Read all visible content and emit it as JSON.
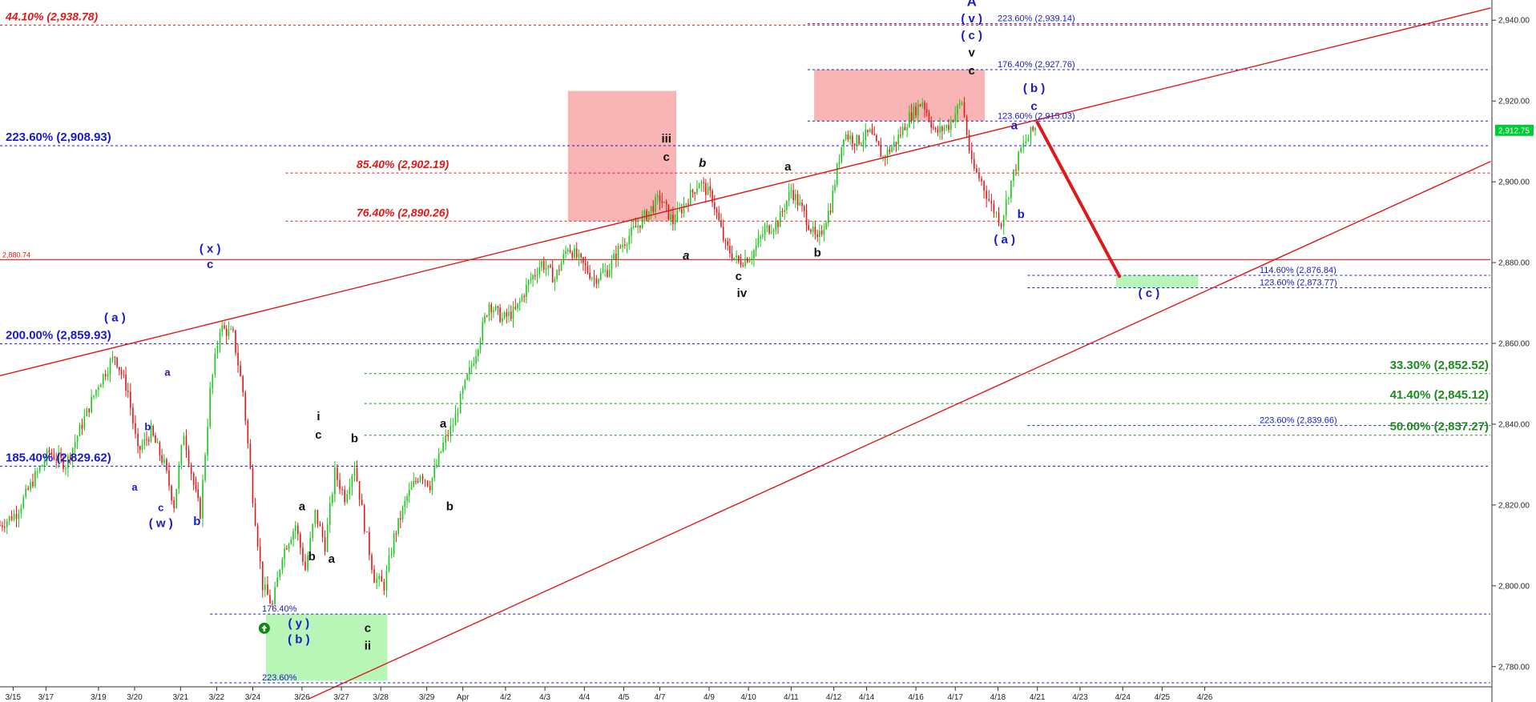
{
  "chart_data": {
    "type": "candlestick",
    "title": "",
    "y_range": [
      2775,
      2945
    ],
    "x_range": [
      0,
      40
    ],
    "price_axis": {
      "ticks": [
        {
          "value": 2940,
          "label": "2,940.00"
        },
        {
          "value": 2920,
          "label": "2,920.00"
        },
        {
          "value": 2900,
          "label": "2,900.00"
        },
        {
          "value": 2880,
          "label": "2,880.00"
        },
        {
          "value": 2860,
          "label": "2,860.00"
        },
        {
          "value": 2840,
          "label": "2,840.00"
        },
        {
          "value": 2820,
          "label": "2,820.00"
        },
        {
          "value": 2800,
          "label": "2,800.00"
        },
        {
          "value": 2780,
          "label": "2,780.00"
        }
      ],
      "last_price": {
        "value": 2912.75,
        "label": "2,912.75",
        "color": "#00cc33"
      }
    },
    "date_axis": [
      {
        "label": "3/15",
        "x": 0.4
      },
      {
        "label": "3/17",
        "x": 1.4
      },
      {
        "label": "3/19",
        "x": 3.0
      },
      {
        "label": "3/20",
        "x": 4.1
      },
      {
        "label": "3/21",
        "x": 5.5
      },
      {
        "label": "3/22",
        "x": 6.6
      },
      {
        "label": "3/24",
        "x": 7.7
      },
      {
        "label": "3/26",
        "x": 9.2
      },
      {
        "label": "3/27",
        "x": 10.4
      },
      {
        "label": "3/28",
        "x": 11.6
      },
      {
        "label": "3/29",
        "x": 13.0
      },
      {
        "label": "Apr",
        "x": 14.1
      },
      {
        "label": "4/2",
        "x": 15.4
      },
      {
        "label": "4/3",
        "x": 16.6
      },
      {
        "label": "4/4",
        "x": 17.8
      },
      {
        "label": "4/5",
        "x": 19.0
      },
      {
        "label": "4/7",
        "x": 20.1
      },
      {
        "label": "4/9",
        "x": 21.6
      },
      {
        "label": "4/10",
        "x": 22.8
      },
      {
        "label": "4/11",
        "x": 24.1
      },
      {
        "label": "4/12",
        "x": 25.4
      },
      {
        "label": "4/14",
        "x": 26.4
      },
      {
        "label": "4/16",
        "x": 27.9
      },
      {
        "label": "4/17",
        "x": 29.1
      },
      {
        "label": "4/18",
        "x": 30.4
      },
      {
        "label": "4/21",
        "x": 31.6
      },
      {
        "label": "4/23",
        "x": 32.9
      },
      {
        "label": "4/24",
        "x": 34.2
      },
      {
        "label": "4/25",
        "x": 35.4
      },
      {
        "label": "4/26",
        "x": 36.7
      }
    ],
    "price_path": [
      [
        0.0,
        2815
      ],
      [
        0.5,
        2818
      ],
      [
        1.0,
        2826
      ],
      [
        1.5,
        2833
      ],
      [
        2.0,
        2830
      ],
      [
        2.5,
        2840
      ],
      [
        3.0,
        2850
      ],
      [
        3.5,
        2857
      ],
      [
        3.9,
        2848
      ],
      [
        4.2,
        2833
      ],
      [
        4.6,
        2838
      ],
      [
        5.0,
        2830
      ],
      [
        5.3,
        2820
      ],
      [
        5.6,
        2838
      ],
      [
        5.9,
        2825
      ],
      [
        6.1,
        2818
      ],
      [
        6.4,
        2848
      ],
      [
        6.7,
        2864
      ],
      [
        7.1,
        2862
      ],
      [
        7.4,
        2848
      ],
      [
        7.7,
        2822
      ],
      [
        8.0,
        2800
      ],
      [
        8.3,
        2795
      ],
      [
        8.6,
        2808
      ],
      [
        9.0,
        2815
      ],
      [
        9.3,
        2804
      ],
      [
        9.6,
        2818
      ],
      [
        9.9,
        2810
      ],
      [
        10.2,
        2828
      ],
      [
        10.5,
        2822
      ],
      [
        10.8,
        2830
      ],
      [
        11.1,
        2815
      ],
      [
        11.4,
        2802
      ],
      [
        11.7,
        2800
      ],
      [
        12.0,
        2812
      ],
      [
        12.4,
        2822
      ],
      [
        12.8,
        2828
      ],
      [
        13.1,
        2825
      ],
      [
        13.5,
        2835
      ],
      [
        13.8,
        2840
      ],
      [
        14.1,
        2848
      ],
      [
        14.5,
        2858
      ],
      [
        14.9,
        2870
      ],
      [
        15.3,
        2866
      ],
      [
        15.7,
        2868
      ],
      [
        16.1,
        2875
      ],
      [
        16.5,
        2880
      ],
      [
        16.9,
        2876
      ],
      [
        17.3,
        2884
      ],
      [
        17.7,
        2880
      ],
      [
        18.1,
        2876
      ],
      [
        18.5,
        2878
      ],
      [
        18.9,
        2884
      ],
      [
        19.3,
        2888
      ],
      [
        19.7,
        2892
      ],
      [
        20.1,
        2896
      ],
      [
        20.5,
        2890
      ],
      [
        20.9,
        2895
      ],
      [
        21.3,
        2900
      ],
      [
        21.7,
        2896
      ],
      [
        22.1,
        2884
      ],
      [
        22.5,
        2880
      ],
      [
        22.9,
        2882
      ],
      [
        23.3,
        2888
      ],
      [
        23.7,
        2890
      ],
      [
        24.1,
        2898
      ],
      [
        24.5,
        2892
      ],
      [
        24.9,
        2885
      ],
      [
        25.3,
        2894
      ],
      [
        25.7,
        2912
      ],
      [
        26.1,
        2910
      ],
      [
        26.5,
        2912
      ],
      [
        26.9,
        2906
      ],
      [
        27.3,
        2910
      ],
      [
        27.7,
        2916
      ],
      [
        28.1,
        2920
      ],
      [
        28.5,
        2912
      ],
      [
        28.9,
        2914
      ],
      [
        29.3,
        2920
      ],
      [
        29.6,
        2904
      ],
      [
        29.9,
        2900
      ],
      [
        30.2,
        2894
      ],
      [
        30.5,
        2890
      ],
      [
        30.8,
        2900
      ],
      [
        31.1,
        2908
      ],
      [
        31.4,
        2912
      ],
      [
        31.6,
        2914
      ]
    ],
    "levels": [
      {
        "label": "44.10% (2,938.78)",
        "value": 2938.78,
        "color": "#e01818",
        "style": "dashed",
        "x_from": 0,
        "x_to": 37.1,
        "italic": true,
        "size": 14
      },
      {
        "label": "223.60% (2,939.14)",
        "value": 2939.14,
        "color": "#1a1acc",
        "style": "dashed",
        "x_from": 24.6,
        "x_to": 37.1,
        "italic": false,
        "size": 11
      },
      {
        "label": "176.40% (2,927.76)",
        "value": 2927.76,
        "color": "#1a1acc",
        "style": "dashed",
        "x_from": 24.6,
        "x_to": 37.1,
        "italic": false,
        "size": 11
      },
      {
        "label": "123.60% (2,915.03)",
        "value": 2915.03,
        "color": "#1a1acc",
        "style": "dashed",
        "x_from": 24.6,
        "x_to": 37.1,
        "italic": false,
        "size": 11
      },
      {
        "label": "223.60% (2,908.93)",
        "value": 2908.93,
        "color": "#1a1acc",
        "style": "dashed",
        "x_from": 0,
        "x_to": 37.1,
        "italic": false,
        "size": 15
      },
      {
        "label": "85.40% (2,902.19)",
        "value": 2902.19,
        "color": "#e01818",
        "style": "dashed",
        "x_from": 8.7,
        "x_to": 37.1,
        "italic": true,
        "size": 14
      },
      {
        "label": "76.40% (2,890.26)",
        "value": 2890.26,
        "color": "#e01818",
        "style": "dashed",
        "x_from": 8.7,
        "x_to": 37.1,
        "italic": true,
        "size": 14
      },
      {
        "label": "2,880.74",
        "value": 2880.74,
        "color": "#e01818",
        "style": "solid",
        "x_from": 0,
        "x_to": 37.1,
        "italic": false,
        "size": 9
      },
      {
        "label": "114.60% (2,876.84)",
        "value": 2876.84,
        "color": "#1a1acc",
        "style": "dashed",
        "x_from": 31.3,
        "x_to": 37.1,
        "italic": false,
        "size": 11
      },
      {
        "label": "123.60% (2,873.77)",
        "value": 2873.77,
        "color": "#1a1acc",
        "style": "dashed",
        "x_from": 31.3,
        "x_to": 37.1,
        "italic": false,
        "size": 11
      },
      {
        "label": "200.00% (2,859.93)",
        "value": 2859.93,
        "color": "#1a1acc",
        "style": "dashed",
        "x_from": 0,
        "x_to": 37.1,
        "italic": false,
        "size": 15
      },
      {
        "label": "33.30% (2,852.52)",
        "value": 2852.52,
        "color": "#1f8a1f",
        "style": "dashed",
        "x_from": 11.1,
        "x_to": 37.1,
        "italic": false,
        "size": 15
      },
      {
        "label": "41.40% (2,845.12)",
        "value": 2845.12,
        "color": "#1f8a1f",
        "style": "dashed",
        "x_from": 11.1,
        "x_to": 37.1,
        "italic": false,
        "size": 15
      },
      {
        "label": "223.60% (2,839.66)",
        "value": 2839.66,
        "color": "#1a1acc",
        "style": "dashed",
        "x_from": 31.3,
        "x_to": 37.1,
        "italic": false,
        "size": 11
      },
      {
        "label": "50.00% (2,837.27)",
        "value": 2837.27,
        "color": "#1f8a1f",
        "style": "dashed",
        "x_from": 11.1,
        "x_to": 37.1,
        "italic": false,
        "size": 15
      },
      {
        "label": "185.40% (2,829.62)",
        "value": 2829.62,
        "color": "#1a1acc",
        "style": "dashed",
        "x_from": 0,
        "x_to": 37.1,
        "italic": false,
        "size": 15
      },
      {
        "label": "176.40%",
        "value": 2793.0,
        "color": "#1a1acc",
        "style": "dashed",
        "x_from": 6.4,
        "x_to": 37.1,
        "italic": false,
        "size": 11
      },
      {
        "label": "223.60%",
        "value": 2776.0,
        "color": "#1a1acc",
        "style": "dashed",
        "x_from": 6.4,
        "x_to": 37.1,
        "italic": false,
        "size": 11
      }
    ],
    "zones": [
      {
        "color": "#f9b1b1",
        "x_from": 17.3,
        "x_to": 20.6,
        "y_from": 2890.26,
        "y_to": 2922.5
      },
      {
        "color": "#f9b1b1",
        "x_from": 24.8,
        "x_to": 30.0,
        "y_from": 2915.03,
        "y_to": 2927.76
      },
      {
        "color": "#b4f5b4",
        "x_from": 8.1,
        "x_to": 11.8,
        "y_from": 2776.5,
        "y_to": 2793.0
      },
      {
        "color": "#b4f5b4",
        "x_from": 34.0,
        "x_to": 36.5,
        "y_from": 2873.77,
        "y_to": 2876.84
      }
    ],
    "trendlines": [
      {
        "color": "#e01818",
        "width": 1.4,
        "from": [
          0,
          2852
        ],
        "to": [
          37.1,
          2943
        ]
      },
      {
        "color": "#e01818",
        "width": 1.4,
        "from": [
          9.4,
          2772
        ],
        "to": [
          37.1,
          2905
        ]
      },
      {
        "color": "#e01818",
        "width": 4,
        "from": [
          31.6,
          2914.7
        ],
        "to": [
          34.1,
          2876.6
        ]
      }
    ],
    "wave_labels": [
      {
        "text": "A",
        "x": 29.6,
        "y": 2943.5,
        "color": "#1a1acc",
        "size": 17,
        "italic": false
      },
      {
        "text": "( v )",
        "x": 29.6,
        "y": 2939.5,
        "color": "#1a1acc",
        "size": 15,
        "italic": false
      },
      {
        "text": "( c )",
        "x": 29.6,
        "y": 2935.3,
        "color": "#1a1acc",
        "size": 15,
        "italic": false
      },
      {
        "text": "v",
        "x": 29.6,
        "y": 2931.0,
        "color": "#111111",
        "size": 15,
        "italic": false
      },
      {
        "text": "c",
        "x": 29.6,
        "y": 2926.6,
        "color": "#111111",
        "size": 15,
        "italic": false
      },
      {
        "text": "( b )",
        "x": 31.5,
        "y": 2922.2,
        "color": "#1a1acc",
        "size": 15,
        "italic": false
      },
      {
        "text": "c",
        "x": 31.5,
        "y": 2917.8,
        "color": "#1a1acc",
        "size": 15,
        "italic": false
      },
      {
        "text": "a",
        "x": 30.9,
        "y": 2913.0,
        "color": "#1a1acc",
        "size": 15,
        "italic": false
      },
      {
        "text": "b",
        "x": 31.1,
        "y": 2891.0,
        "color": "#1a1acc",
        "size": 15,
        "italic": false
      },
      {
        "text": "( a )",
        "x": 30.6,
        "y": 2884.8,
        "color": "#1a1acc",
        "size": 15,
        "italic": false
      },
      {
        "text": "( c )",
        "x": 35.0,
        "y": 2871.5,
        "color": "#1a1acc",
        "size": 15,
        "italic": false
      },
      {
        "text": "iii",
        "x": 20.3,
        "y": 2909.7,
        "color": "#111111",
        "size": 15,
        "italic": false
      },
      {
        "text": "c",
        "x": 20.3,
        "y": 2905.2,
        "color": "#111111",
        "size": 15,
        "italic": false
      },
      {
        "text": "b",
        "x": 21.4,
        "y": 2903.7,
        "color": "#111111",
        "size": 15,
        "italic": true
      },
      {
        "text": "a",
        "x": 24.0,
        "y": 2902.8,
        "color": "#111111",
        "size": 15,
        "italic": false
      },
      {
        "text": "a",
        "x": 20.9,
        "y": 2880.8,
        "color": "#111111",
        "size": 15,
        "italic": true
      },
      {
        "text": "b",
        "x": 24.9,
        "y": 2881.5,
        "color": "#111111",
        "size": 15,
        "italic": false
      },
      {
        "text": "c",
        "x": 22.5,
        "y": 2875.7,
        "color": "#111111",
        "size": 15,
        "italic": false
      },
      {
        "text": "iv",
        "x": 22.6,
        "y": 2871.5,
        "color": "#111111",
        "size": 15,
        "italic": false
      },
      {
        "text": "( x )",
        "x": 6.4,
        "y": 2882.5,
        "color": "#1a1acc",
        "size": 15,
        "italic": false
      },
      {
        "text": "c",
        "x": 6.4,
        "y": 2878.6,
        "color": "#1a1acc",
        "size": 15,
        "italic": false
      },
      {
        "text": "( a )",
        "x": 3.5,
        "y": 2865.4,
        "color": "#1a1acc",
        "size": 15,
        "italic": false
      },
      {
        "text": "a",
        "x": 5.1,
        "y": 2852.0,
        "color": "#1a1acc",
        "size": 13,
        "italic": false
      },
      {
        "text": "b",
        "x": 4.5,
        "y": 2838.5,
        "color": "#1a1acc",
        "size": 13,
        "italic": false
      },
      {
        "text": "a",
        "x": 4.1,
        "y": 2823.5,
        "color": "#1a1acc",
        "size": 13,
        "italic": false
      },
      {
        "text": "c",
        "x": 4.9,
        "y": 2818.5,
        "color": "#1a1acc",
        "size": 13,
        "italic": false
      },
      {
        "text": "( w )",
        "x": 4.9,
        "y": 2814.5,
        "color": "#1a1acc",
        "size": 15,
        "italic": false
      },
      {
        "text": "b",
        "x": 6.0,
        "y": 2815.0,
        "color": "#1a1acc",
        "size": 15,
        "italic": false
      },
      {
        "text": "( y )",
        "x": 9.1,
        "y": 2789.8,
        "color": "#1a1acc",
        "size": 15,
        "italic": false
      },
      {
        "text": "( b )",
        "x": 9.1,
        "y": 2785.8,
        "color": "#1a1acc",
        "size": 15,
        "italic": false
      },
      {
        "text": "i",
        "x": 9.7,
        "y": 2841.0,
        "color": "#111111",
        "size": 15,
        "italic": false
      },
      {
        "text": "c",
        "x": 9.7,
        "y": 2836.4,
        "color": "#111111",
        "size": 15,
        "italic": false
      },
      {
        "text": "a",
        "x": 9.2,
        "y": 2818.7,
        "color": "#111111",
        "size": 15,
        "italic": false
      },
      {
        "text": "b",
        "x": 9.5,
        "y": 2806.3,
        "color": "#111111",
        "size": 15,
        "italic": false
      },
      {
        "text": "a",
        "x": 10.1,
        "y": 2805.7,
        "color": "#111111",
        "size": 15,
        "italic": false
      },
      {
        "text": "b",
        "x": 10.8,
        "y": 2835.5,
        "color": "#111111",
        "size": 15,
        "italic": false
      },
      {
        "text": "c",
        "x": 11.2,
        "y": 2788.6,
        "color": "#111111",
        "size": 15,
        "italic": false
      },
      {
        "text": "ii",
        "x": 11.2,
        "y": 2784.2,
        "color": "#111111",
        "size": 15,
        "italic": false
      },
      {
        "text": "a",
        "x": 13.5,
        "y": 2839.2,
        "color": "#111111",
        "size": 15,
        "italic": false
      },
      {
        "text": "b",
        "x": 13.7,
        "y": 2818.7,
        "color": "#111111",
        "size": 15,
        "italic": false
      }
    ],
    "label_positions": "levels printed at the start of each line; top-right quadrant fib labels right-aligned",
    "colors": {
      "up_candle": "#18c918",
      "down_candle": "#e01818",
      "wave_blue": "#1a1acc",
      "wave_black": "#111111",
      "fib_red": "#e01818",
      "fib_green": "#1f8a1f",
      "target_marker": "#118811"
    },
    "grid": false,
    "legend": "none"
  }
}
